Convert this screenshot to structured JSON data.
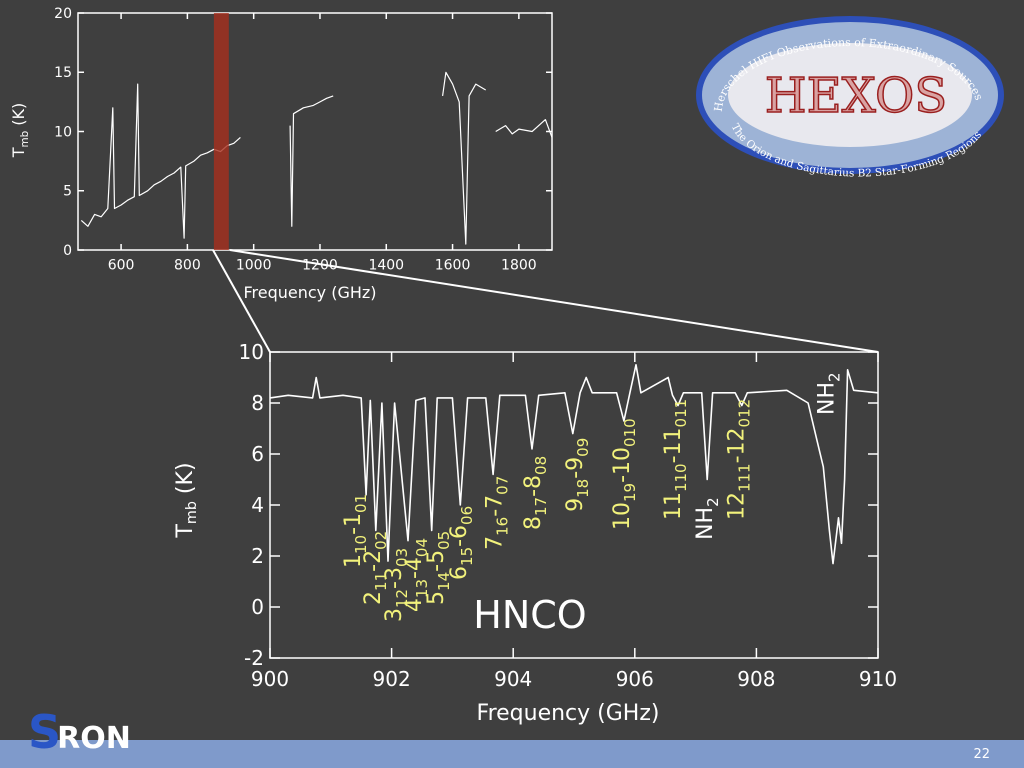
{
  "chart_data": [
    {
      "type": "line",
      "x_label": "Frequency (GHz)",
      "y_label": [
        "T",
        "mb",
        " (K)"
      ],
      "color": "#ffffff",
      "xlim": [
        470,
        1900
      ],
      "ylim": [
        0,
        20
      ],
      "xticks": [
        600,
        800,
        1000,
        1200,
        1400,
        1600,
        1800
      ],
      "yticks": [
        0,
        5,
        10,
        15,
        20
      ],
      "highlight": [
        880,
        925
      ],
      "highlight_color": "#a8301e",
      "x": [
        480,
        500,
        520,
        540,
        560,
        575,
        580,
        600,
        620,
        640,
        650,
        655,
        680,
        700,
        720,
        740,
        760,
        780,
        790,
        795,
        820,
        840,
        860,
        880,
        900,
        920,
        940,
        960,
        980,
        1110,
        1115,
        1120,
        1150,
        1180,
        1200,
        1220,
        1240,
        1400,
        1570,
        1580,
        1600,
        1620,
        1640,
        1650,
        1670,
        1700,
        1715,
        1730,
        1760,
        1780,
        1800,
        1840,
        1880,
        1900
      ],
      "values": [
        2.5,
        2.0,
        3.0,
        2.8,
        3.5,
        12,
        3.5,
        3.8,
        4.2,
        4.5,
        14,
        4.6,
        5.0,
        5.5,
        5.8,
        6.2,
        6.5,
        7.0,
        1,
        7.1,
        7.5,
        8.0,
        8.2,
        8.5,
        8.3,
        8.8,
        9.0,
        9.5,
        null,
        10.5,
        2,
        11.5,
        12,
        12.2,
        12.5,
        12.8,
        13,
        null,
        13,
        15,
        14,
        12.5,
        0.5,
        13,
        14,
        13.5,
        null,
        10,
        10.5,
        9.8,
        10.2,
        10,
        11,
        9.5
      ]
    },
    {
      "type": "line",
      "x_label": "Frequency (GHz)",
      "y_label": [
        "T",
        "mb",
        " (K)"
      ],
      "color": "#ffffff",
      "xlim": [
        900,
        910
      ],
      "ylim": [
        -2,
        10
      ],
      "xticks": [
        900,
        902,
        904,
        906,
        908,
        910
      ],
      "yticks": [
        -2,
        0,
        2,
        4,
        6,
        8,
        10
      ],
      "x": [
        900.0,
        900.3,
        900.7,
        900.76,
        900.82,
        901.2,
        901.5,
        901.58,
        901.65,
        901.74,
        901.84,
        901.94,
        902.05,
        902.27,
        902.4,
        902.55,
        902.66,
        902.75,
        903.0,
        903.13,
        903.25,
        903.55,
        903.67,
        903.78,
        904.2,
        904.31,
        904.42,
        904.85,
        904.98,
        905.1,
        905.2,
        905.3,
        905.7,
        905.82,
        905.92,
        906.02,
        906.1,
        906.55,
        906.62,
        906.71,
        906.8,
        907.1,
        907.19,
        907.28,
        907.65,
        907.76,
        907.85,
        908.5,
        908.85,
        909.0,
        909.1,
        909.2,
        909.26,
        909.35,
        909.4,
        909.45,
        909.5,
        909.6,
        910.0
      ],
      "values": [
        8.2,
        8.3,
        8.2,
        9.0,
        8.2,
        8.3,
        8.2,
        4.4,
        8.1,
        3.0,
        8.0,
        1.8,
        8.0,
        2.6,
        8.1,
        8.2,
        3.0,
        8.2,
        8.2,
        4.0,
        8.2,
        8.2,
        5.2,
        8.3,
        8.3,
        6.2,
        8.3,
        8.4,
        6.8,
        8.4,
        9.0,
        8.4,
        8.4,
        7.3,
        8.4,
        9.5,
        8.4,
        9.0,
        8.3,
        7.9,
        8.4,
        8.4,
        5.0,
        8.4,
        8.4,
        7.9,
        8.4,
        8.5,
        8.0,
        6.5,
        5.5,
        3.0,
        1.7,
        3.5,
        2.5,
        5.0,
        9.3,
        8.5,
        8.4
      ],
      "annotations": [
        {
          "x": 901.35,
          "y": 1.53,
          "parts": [
            "1",
            "10",
            "-1",
            "01"
          ],
          "color": "#f2f27c"
        },
        {
          "x": 901.68,
          "y": 0.08,
          "parts": [
            "2",
            "11",
            "-2",
            "02"
          ],
          "color": "#f2f27c"
        },
        {
          "x": 902.02,
          "y": -0.59,
          "parts": [
            "3",
            "12",
            "-3",
            "03"
          ],
          "color": "#f2f27c"
        },
        {
          "x": 902.35,
          "y": -0.2,
          "parts": [
            "4",
            "13",
            "-4",
            "04"
          ],
          "color": "#f2f27c"
        },
        {
          "x": 902.71,
          "y": 0.08,
          "parts": [
            "5",
            "14",
            "-5",
            "05"
          ],
          "color": "#f2f27c"
        },
        {
          "x": 903.09,
          "y": 1.06,
          "parts": [
            "6",
            "15",
            "-6",
            "06"
          ],
          "color": "#f2f27c"
        },
        {
          "x": 903.68,
          "y": 2.24,
          "parts": [
            "7",
            "16",
            "-7",
            "07"
          ],
          "color": "#f2f27c"
        },
        {
          "x": 904.31,
          "y": 3.02,
          "parts": [
            "8",
            "17",
            "-8",
            "08"
          ],
          "color": "#f2f27c"
        },
        {
          "x": 905.0,
          "y": 3.73,
          "parts": [
            "9",
            "18",
            "-9",
            "09"
          ],
          "color": "#f2f27c"
        },
        {
          "x": 905.77,
          "y": 3.02,
          "parts": [
            "10",
            "19",
            "-10",
            "010"
          ],
          "color": "#f2f27c"
        },
        {
          "x": 906.61,
          "y": 3.41,
          "parts": [
            "11",
            "110",
            "-11",
            "011"
          ],
          "color": "#f2f27c"
        },
        {
          "x": 907.14,
          "y": 2.63,
          "parts": [
            "NH",
            "2"
          ],
          "color": "#ffffff"
        },
        {
          "x": 907.66,
          "y": 3.41,
          "parts": [
            "12",
            "111",
            "-12",
            "012"
          ],
          "color": "#f2f27c"
        },
        {
          "x": 909.14,
          "y": 7.53,
          "parts": [
            "NH",
            "2"
          ],
          "color": "#ffffff"
        }
      ],
      "species": "HNCO"
    }
  ],
  "logo": {
    "name": "HEXOS",
    "top_arc": "Herschel HIFI Observations of Extraordinary Sources",
    "bottom_arc": "The Orion and Sagittarius B2 Star-Forming Regions"
  },
  "sron": [
    "S",
    "RON"
  ],
  "page_number": "22"
}
